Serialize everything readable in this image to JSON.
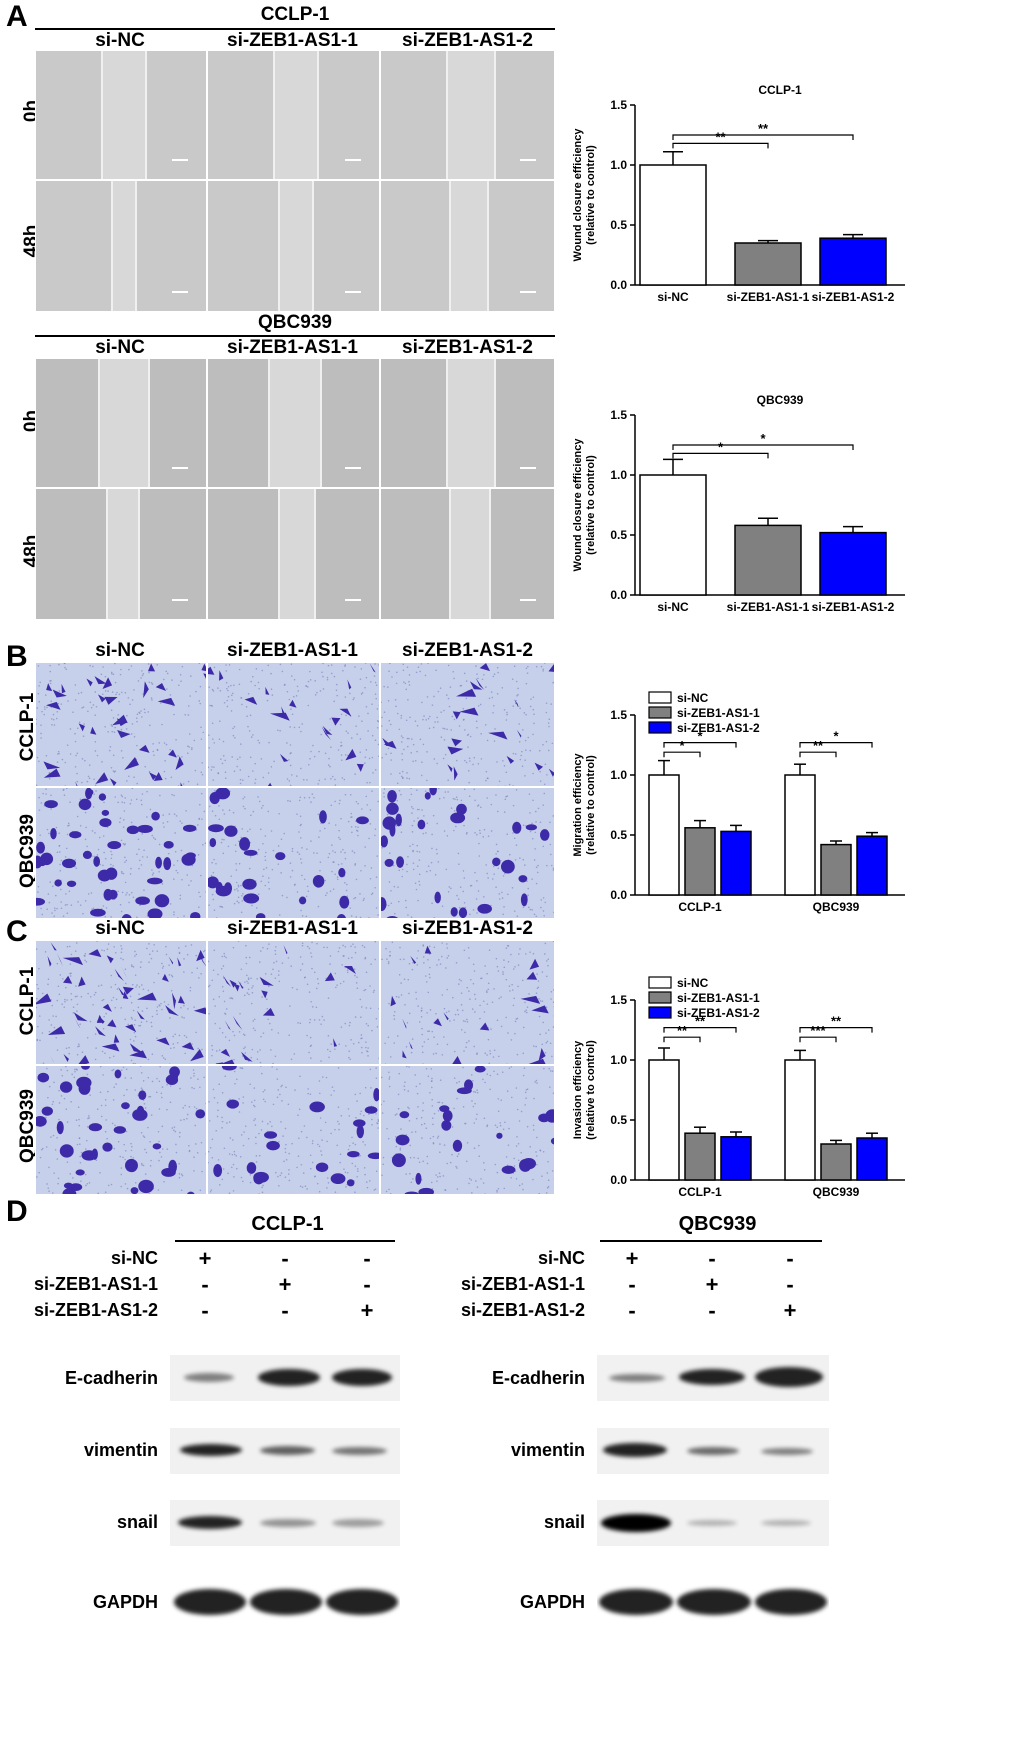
{
  "panel_labels": {
    "A": "A",
    "B": "B",
    "C": "C",
    "D": "D"
  },
  "groups": [
    "si-NC",
    "si-ZEB1-AS1-1",
    "si-ZEB1-AS1-2"
  ],
  "cell_lines": {
    "ccl": "CCLP-1",
    "qbc": "QBC939"
  },
  "timepoints": {
    "t0": "0h",
    "t48": "48h"
  },
  "wb": {
    "row_labels": [
      "si-NC",
      "si-ZEB1-AS1-1",
      "si-ZEB1-AS1-2"
    ],
    "proteins": [
      "E-cadherin",
      "vimentin",
      "snail",
      "GAPDH"
    ],
    "signs": [
      [
        "+",
        "-",
        "-"
      ],
      [
        "-",
        "+",
        "-"
      ],
      [
        "-",
        "-",
        "+"
      ]
    ]
  },
  "colors": {
    "si-NC": "#ffffff",
    "si-ZEB1-AS1-1": "#808080",
    "si-ZEB1-AS1-2": "#0000ff"
  },
  "chart_data": [
    {
      "type": "bar",
      "title": "CCLP-1",
      "ylabel": "Wound closure efficiency\n(relative to control)",
      "categories": [
        "si-NC",
        "si-ZEB1-AS1-1",
        "si-ZEB1-AS1-2"
      ],
      "values": [
        1.0,
        0.35,
        0.39
      ],
      "errors": [
        0.11,
        0.02,
        0.03
      ],
      "ylim": [
        0,
        1.5
      ],
      "yticks": [
        "0.0",
        "0.5",
        "1.0",
        "1.5"
      ],
      "annotations": [
        {
          "from": "si-NC",
          "to": "si-ZEB1-AS1-1",
          "label": "**"
        },
        {
          "from": "si-NC",
          "to": "si-ZEB1-AS1-2",
          "label": "**"
        }
      ]
    },
    {
      "type": "bar",
      "title": "QBC939",
      "ylabel": "Wound closure efficiency\n(relative to control)",
      "categories": [
        "si-NC",
        "si-ZEB1-AS1-1",
        "si-ZEB1-AS1-2"
      ],
      "values": [
        1.0,
        0.58,
        0.52
      ],
      "errors": [
        0.13,
        0.06,
        0.05
      ],
      "ylim": [
        0,
        1.5
      ],
      "yticks": [
        "0.0",
        "0.5",
        "1.0",
        "1.5"
      ],
      "annotations": [
        {
          "from": "si-NC",
          "to": "si-ZEB1-AS1-1",
          "label": "*"
        },
        {
          "from": "si-NC",
          "to": "si-ZEB1-AS1-2",
          "label": "*"
        }
      ]
    },
    {
      "type": "bar",
      "title": "",
      "ylabel": "Migration efficiency\n(relative to control)",
      "categories": [
        "CCLP-1",
        "QBC939"
      ],
      "series": [
        {
          "name": "si-NC",
          "values": [
            1.0,
            1.0
          ],
          "errors": [
            0.12,
            0.09
          ]
        },
        {
          "name": "si-ZEB1-AS1-1",
          "values": [
            0.56,
            0.42
          ],
          "errors": [
            0.06,
            0.03
          ]
        },
        {
          "name": "si-ZEB1-AS1-2",
          "values": [
            0.53,
            0.49
          ],
          "errors": [
            0.05,
            0.03
          ]
        }
      ],
      "ylim": [
        0,
        1.5
      ],
      "yticks": [
        "0.0",
        "0.5",
        "1.0",
        "1.5"
      ],
      "legend": "top",
      "annotations": [
        [
          "*",
          "*"
        ],
        [
          "**",
          "*"
        ]
      ]
    },
    {
      "type": "bar",
      "title": "",
      "ylabel": "Invasion efficiency\n(relative to control)",
      "categories": [
        "CCLP-1",
        "QBC939"
      ],
      "series": [
        {
          "name": "si-NC",
          "values": [
            1.0,
            1.0
          ],
          "errors": [
            0.1,
            0.08
          ]
        },
        {
          "name": "si-ZEB1-AS1-1",
          "values": [
            0.39,
            0.3
          ],
          "errors": [
            0.05,
            0.03
          ]
        },
        {
          "name": "si-ZEB1-AS1-2",
          "values": [
            0.36,
            0.35
          ],
          "errors": [
            0.04,
            0.04
          ]
        }
      ],
      "ylim": [
        0,
        1.5
      ],
      "yticks": [
        "0.0",
        "0.5",
        "1.0",
        "1.5"
      ],
      "legend": "top",
      "annotations": [
        [
          "**",
          "**"
        ],
        [
          "***",
          "**"
        ]
      ]
    }
  ]
}
